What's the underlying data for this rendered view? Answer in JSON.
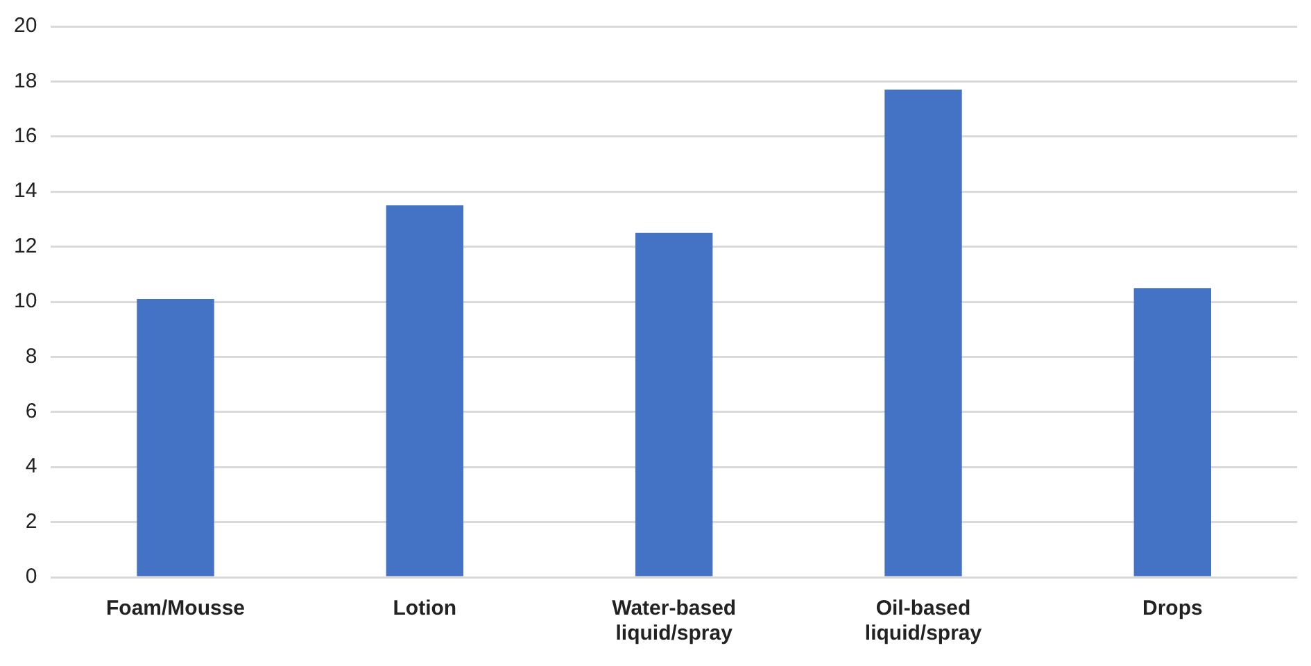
{
  "chart_data": {
    "type": "bar",
    "categories": [
      "Foam/Mousse",
      "Lotion",
      "Water-based liquid/spray",
      "Oil-based liquid/spray",
      "Drops"
    ],
    "values": [
      10.1,
      13.5,
      12.5,
      17.7,
      10.5
    ],
    "color": "#4472c4",
    "ylim": [
      0,
      20
    ],
    "yticks": [
      0,
      2,
      4,
      6,
      8,
      10,
      12,
      14,
      16,
      18,
      20
    ],
    "grid": "y",
    "legend": false
  }
}
